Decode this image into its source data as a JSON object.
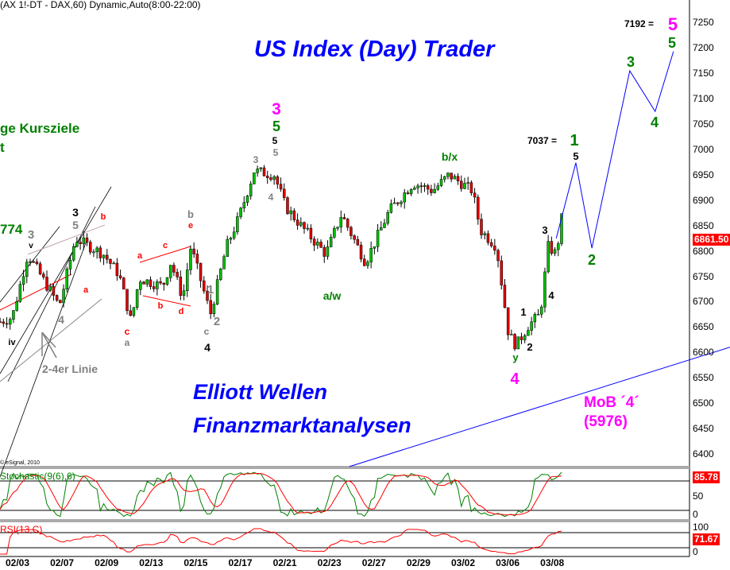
{
  "header": {
    "title": "(AX 1!-DT - DAX,60) Dynamic,Auto(8:00-22:00)"
  },
  "watermark": {
    "title": "US Index (Day) Trader",
    "line1": "Elliott Wellen",
    "line2": "Finanzmarktanalysen"
  },
  "copyright": "© eSignal, 2010",
  "notes": {
    "kursziele": "ge Kursziele",
    "kursziele2": "t",
    "level774": "774",
    "linie": "2-4er Linie",
    "mob": "MoB ´4´",
    "mob_value": "(5976)",
    "target1": "7037 = ",
    "target5": "7192 = "
  },
  "labels": [
    "3",
    "v",
    "iv",
    "3",
    "5",
    "b",
    "a",
    "4",
    "c",
    "a",
    "a",
    "c",
    "b",
    "d",
    "b",
    "e",
    "1",
    "2",
    "c",
    "4",
    "3",
    "5",
    "5",
    "5",
    "3",
    "4",
    "a/w",
    "b/x",
    "1",
    "2",
    "y",
    "4",
    "3",
    "4",
    "1",
    "5",
    "2",
    "3",
    "4",
    "5",
    "5"
  ],
  "colors": {
    "up": "#00c000",
    "down": "#e00000",
    "projection": "#0000ff",
    "green_label": "#008000",
    "magenta": "#ff00ff",
    "red_label": "#ff0000",
    "gray_label": "#808080"
  },
  "chart_data": {
    "type": "candlestick",
    "x_ticks": [
      "02/03",
      "02/07",
      "02/09",
      "02/13",
      "02/15",
      "02/17",
      "02/21",
      "02/23",
      "02/27",
      "02/29",
      "03/02",
      "03/06",
      "03/08"
    ],
    "y_ticks": [
      7250,
      7200,
      7150,
      7100,
      7050,
      7000,
      6950,
      6900,
      6850,
      6800,
      6750,
      6700,
      6650,
      6600,
      6550,
      6500,
      6450,
      6400
    ],
    "ylim": [
      6385,
      7290
    ],
    "last_price": "6861.50",
    "price_path": [
      [
        -0.39,
        6662
      ],
      [
        -0.12,
        6670
      ],
      [
        0.23,
        6795
      ],
      [
        0.94,
        6693
      ],
      [
        1.3,
        6826
      ],
      [
        1.93,
        6795
      ],
      [
        2.28,
        6755
      ],
      [
        2.55,
        6662
      ],
      [
        2.73,
        6747
      ],
      [
        3.26,
        6732
      ],
      [
        3.44,
        6779
      ],
      [
        3.71,
        6709
      ],
      [
        3.89,
        6810
      ],
      [
        4.15,
        6732
      ],
      [
        4.33,
        6677
      ],
      [
        4.69,
        6810
      ],
      [
        4.96,
        6865
      ],
      [
        5.31,
        6959
      ],
      [
        5.76,
        6951
      ],
      [
        6.02,
        6888
      ],
      [
        6.38,
        6849
      ],
      [
        6.92,
        6795
      ],
      [
        7.27,
        6873
      ],
      [
        7.81,
        6779
      ],
      [
        8.34,
        6880
      ],
      [
        8.88,
        6935
      ],
      [
        9.32,
        6920
      ],
      [
        9.68,
        6951
      ],
      [
        10.21,
        6920
      ],
      [
        10.39,
        6842
      ],
      [
        10.75,
        6810
      ],
      [
        11.02,
        6638
      ],
      [
        11.19,
        6615
      ],
      [
        11.46,
        6654
      ],
      [
        11.73,
        6677
      ],
      [
        11.91,
        6810
      ],
      [
        12.09,
        6795
      ],
      [
        12.21,
        6865
      ]
    ],
    "projection": [
      [
        12.09,
        6826
      ],
      [
        12.53,
        6975
      ],
      [
        12.89,
        6807
      ],
      [
        13.74,
        7156
      ],
      [
        14.31,
        7076
      ],
      [
        14.72,
        7194
      ]
    ],
    "support_line": [
      [
        7.45,
        6377
      ],
      [
        15.99,
        6612
      ]
    ],
    "stochastic": {
      "label": "Stochastic(9(6),6)",
      "value": "85.78",
      "levels": [
        80,
        20
      ],
      "ticks": [
        "50",
        "0"
      ]
    },
    "rsi": {
      "label": "RSI(13,C)",
      "value": "71.67",
      "ticks": [
        "100",
        "0"
      ]
    }
  }
}
